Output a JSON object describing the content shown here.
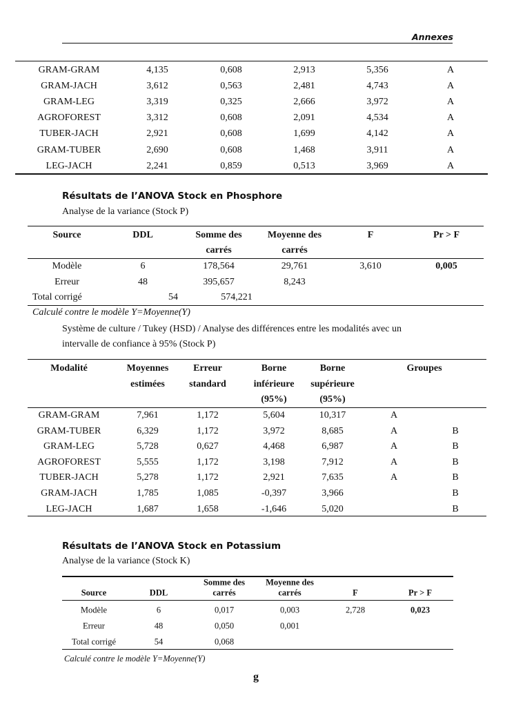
{
  "header": {
    "title": "Annexes"
  },
  "table_continued": {
    "rows": [
      [
        "GRAM-GRAM",
        "4,135",
        "0,608",
        "2,913",
        "5,356",
        "A"
      ],
      [
        "GRAM-JACH",
        "3,612",
        "0,563",
        "2,481",
        "4,743",
        "A"
      ],
      [
        "GRAM-LEG",
        "3,319",
        "0,325",
        "2,666",
        "3,972",
        "A"
      ],
      [
        "AGROFOREST",
        "3,312",
        "0,608",
        "2,091",
        "4,534",
        "A"
      ],
      [
        "TUBER-JACH",
        "2,921",
        "0,608",
        "1,699",
        "4,142",
        "A"
      ],
      [
        "GRAM-TUBER",
        "2,690",
        "0,608",
        "1,468",
        "3,911",
        "A"
      ],
      [
        "LEG-JACH",
        "2,241",
        "0,859",
        "0,513",
        "3,969",
        "A"
      ]
    ]
  },
  "phosphore": {
    "heading": "Résultats de l’ANOVA Stock en Phosphore",
    "subtitle": "Analyse de la variance (Stock P)",
    "anova": {
      "headers": [
        [
          "Source"
        ],
        [
          "DDL"
        ],
        [
          "Somme des",
          "carrés"
        ],
        [
          "Moyenne des",
          "carrés"
        ],
        [
          "F"
        ],
        [
          "Pr > F"
        ]
      ],
      "rows": [
        [
          "Modèle",
          "6",
          "178,564",
          "29,761",
          "3,610",
          "0,005"
        ],
        [
          "Erreur",
          "48",
          "395,657",
          "8,243",
          "",
          ""
        ],
        [
          "Total corrigé",
          "54",
          "574,221",
          "",
          "",
          ""
        ]
      ]
    },
    "note": "Calculé contre le modèle Y=Moyenne(Y)",
    "tukey_caption": [
      "Système de culture / Tukey (HSD) / Analyse des différences entre les modalités avec un",
      "intervalle de confiance à 95% (Stock P)"
    ],
    "tukey": {
      "headers": [
        [
          "Modalité"
        ],
        [
          "Moyennes",
          "estimées"
        ],
        [
          "Erreur",
          "standard"
        ],
        [
          "Borne",
          "inférieure",
          "(95%)"
        ],
        [
          "Borne",
          "supérieure",
          "(95%)"
        ],
        [
          "Groupes"
        ]
      ],
      "rows": [
        [
          "GRAM-GRAM",
          "7,961",
          "1,172",
          "5,604",
          "10,317",
          "A",
          ""
        ],
        [
          "GRAM-TUBER",
          "6,329",
          "1,172",
          "3,972",
          "8,685",
          "A",
          "B"
        ],
        [
          "GRAM-LEG",
          "5,728",
          "0,627",
          "4,468",
          "6,987",
          "A",
          "B"
        ],
        [
          "AGROFOREST",
          "5,555",
          "1,172",
          "3,198",
          "7,912",
          "A",
          "B"
        ],
        [
          "TUBER-JACH",
          "5,278",
          "1,172",
          "2,921",
          "7,635",
          "A",
          "B"
        ],
        [
          "GRAM-JACH",
          "1,785",
          "1,085",
          "-0,397",
          "3,966",
          "",
          "B"
        ],
        [
          "LEG-JACH",
          "1,687",
          "1,658",
          "-1,646",
          "5,020",
          "",
          "B"
        ]
      ]
    }
  },
  "potassium": {
    "heading": "Résultats de l’ANOVA Stock en Potassium",
    "subtitle": "Analyse de la variance (Stock K)",
    "anova": {
      "headers": [
        [
          "Source"
        ],
        [
          "DDL"
        ],
        [
          "Somme des",
          "carrés"
        ],
        [
          "Moyenne des",
          "carrés"
        ],
        [
          "F"
        ],
        [
          "Pr > F"
        ]
      ],
      "rows": [
        [
          "Modèle",
          "6",
          "0,017",
          "0,003",
          "2,728",
          "0,023"
        ],
        [
          "Erreur",
          "48",
          "0,050",
          "0,001",
          "",
          ""
        ],
        [
          "Total corrigé",
          "54",
          "0,068",
          "",
          "",
          ""
        ]
      ]
    },
    "note": "Calculé contre le modèle Y=Moyenne(Y)"
  },
  "page_number": "g"
}
